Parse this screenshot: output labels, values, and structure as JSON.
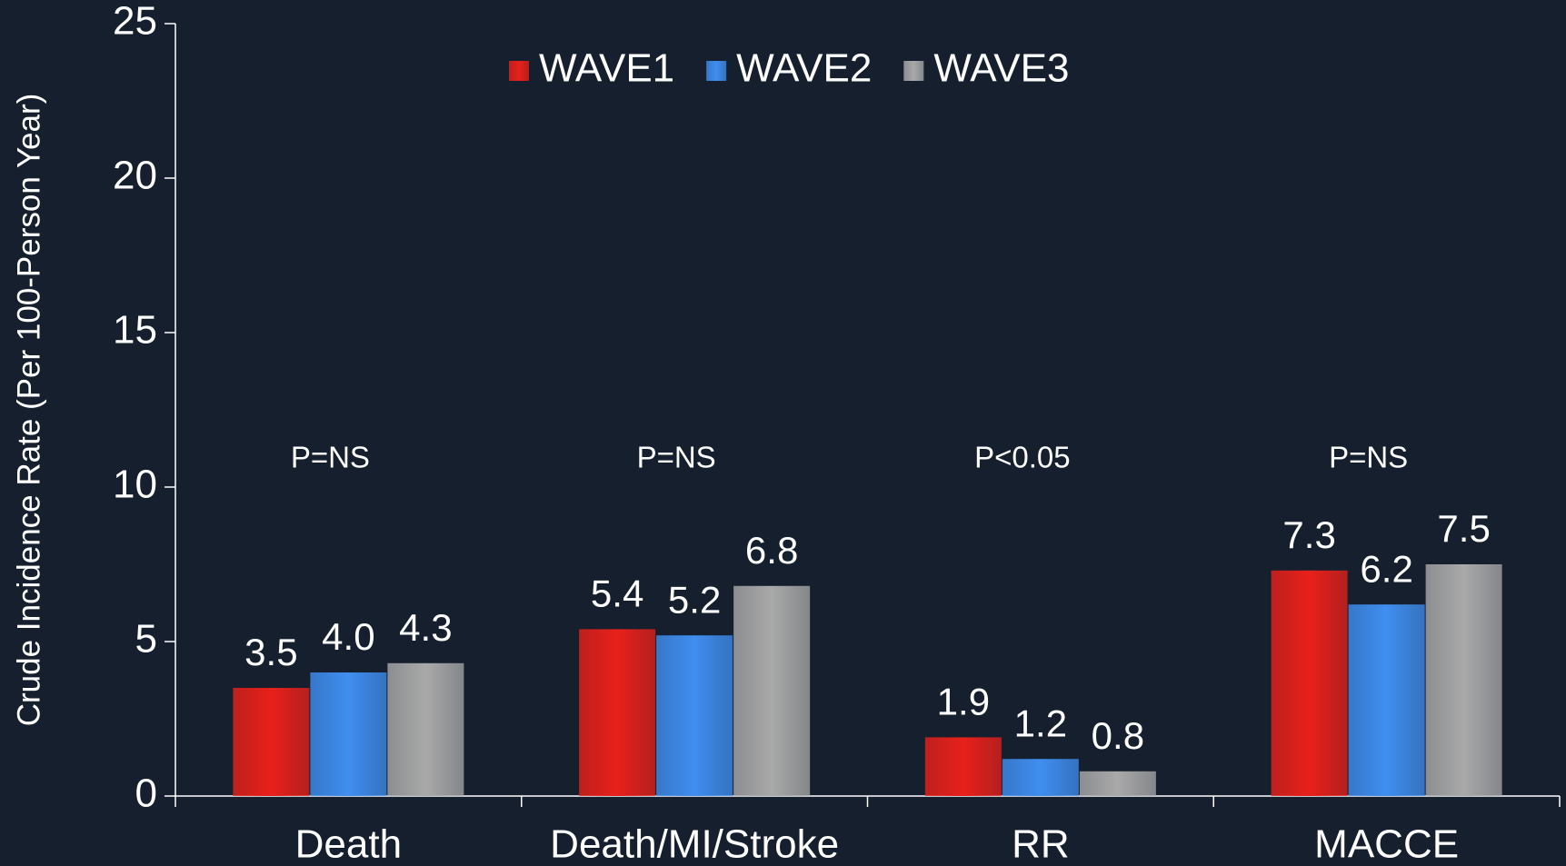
{
  "chart_data": {
    "type": "bar",
    "y_label": "Crude Incidence Rate (Per 100-Person Year)",
    "categories": [
      "Death",
      "Death/MI/Stroke",
      "RR",
      "MACCE"
    ],
    "series": [
      {
        "name": "WAVE1",
        "color": "#e8201a",
        "values": [
          3.5,
          5.4,
          1.9,
          7.3
        ],
        "value_labels": [
          "3.5",
          "5.4",
          "1.9",
          "7.3"
        ]
      },
      {
        "name": "WAVE2",
        "color": "#3f8ef0",
        "values": [
          4.0,
          5.2,
          1.2,
          6.2
        ],
        "value_labels": [
          "4.0",
          "5.2",
          "1.2",
          "6.2"
        ]
      },
      {
        "name": "WAVE3",
        "color": "#a9a9a9",
        "values": [
          4.3,
          6.8,
          0.8,
          7.5
        ],
        "value_labels": [
          "4.3",
          "6.8",
          "0.8",
          "7.5"
        ]
      }
    ],
    "annotations": [
      "P=NS",
      "P=NS",
      "P<0.05",
      "P=NS"
    ],
    "ylim": [
      0,
      25
    ],
    "yticks": [
      0,
      5,
      10,
      15,
      20,
      25
    ],
    "legend": "top",
    "grid": false
  }
}
